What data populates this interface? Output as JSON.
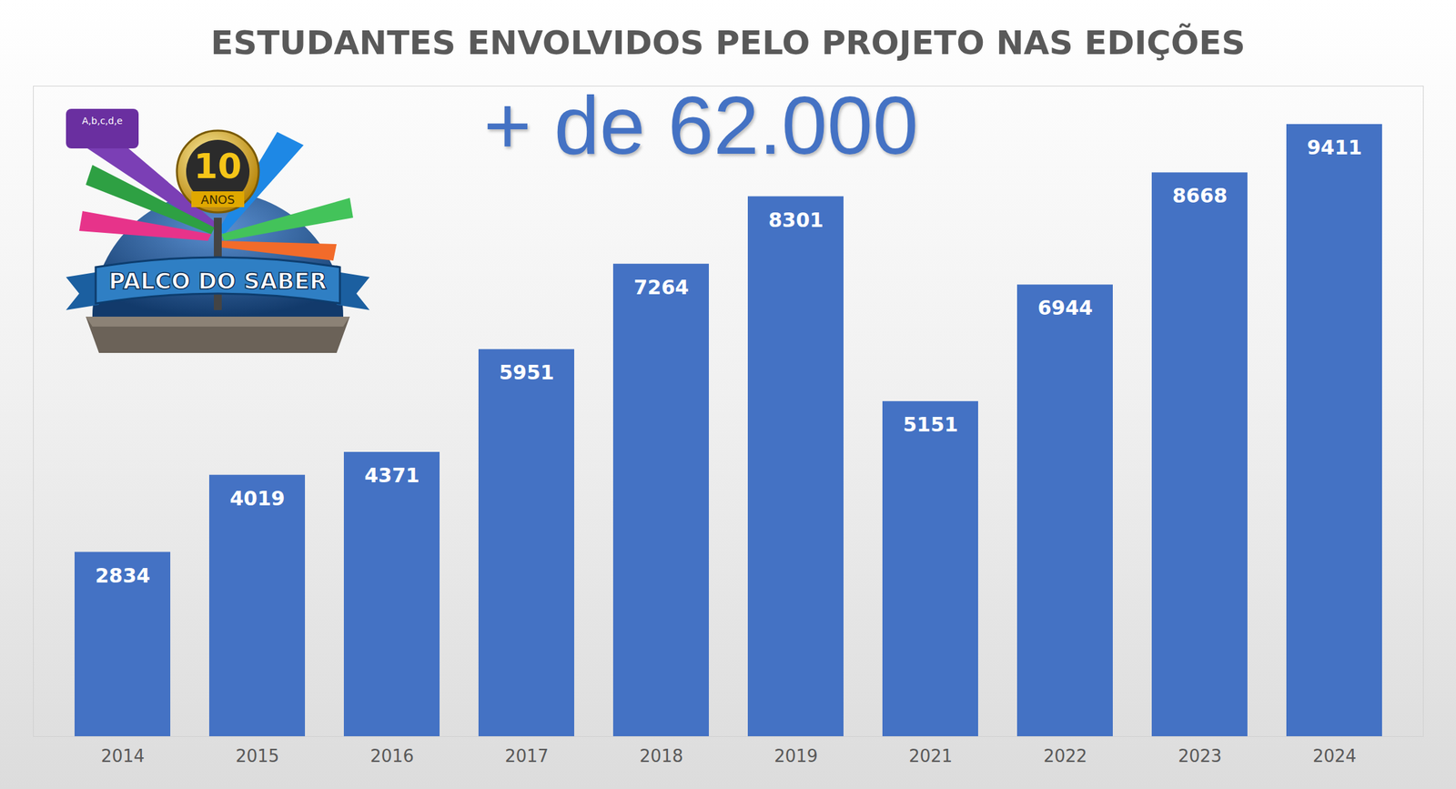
{
  "chart_data": {
    "type": "bar",
    "title": "ESTUDANTES ENVOLVIDOS PELO PROJETO NAS EDIÇÕES",
    "annotations": [
      "+ de 62.000"
    ],
    "categories": [
      "2014",
      "2015",
      "2016",
      "2017",
      "2018",
      "2019",
      "2021",
      "2022",
      "2023",
      "2024"
    ],
    "values": [
      2834,
      4019,
      4371,
      5951,
      7264,
      8301,
      5151,
      6944,
      8668,
      9411
    ],
    "color": "#4472c4",
    "ylim": [
      0,
      10000
    ],
    "data_labels": true,
    "tick_labels": "x",
    "grid": false
  },
  "logo": {
    "texts": [
      "A,b,c,d,e",
      "10",
      "ANOS",
      "PALCO DO SABER"
    ]
  }
}
